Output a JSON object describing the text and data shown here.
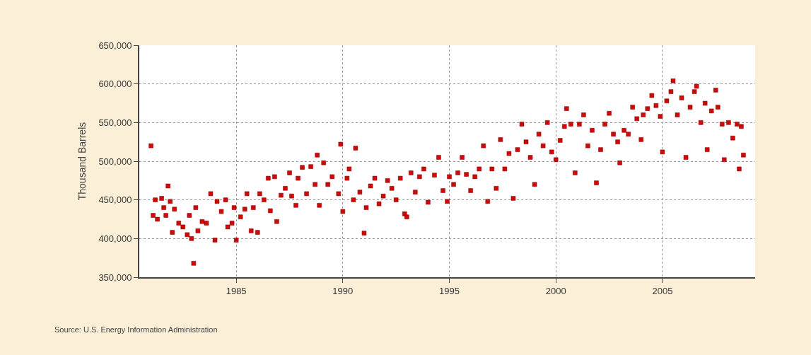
{
  "chart_data": {
    "type": "scatter",
    "ylabel": "Thousand Barrels",
    "marker": "square",
    "grid": true,
    "annotations": [
      "Source: U.S. Energy Information Administration"
    ],
    "xlim": [
      1980.45,
      2009.35
    ],
    "xticks": [
      1985,
      1990,
      1995,
      2000,
      2005
    ],
    "ylim": [
      350000,
      650000
    ],
    "yticks": [
      {
        "value": 350000,
        "label": "350,000"
      },
      {
        "value": 400000,
        "label": "400,000"
      },
      {
        "value": 450000,
        "label": "450,000"
      },
      {
        "value": 500000,
        "label": "500,000"
      },
      {
        "value": 550000,
        "label": "550,000"
      },
      {
        "value": 600000,
        "label": "600,000"
      },
      {
        "value": 650000,
        "label": "650,000"
      }
    ],
    "series": [
      {
        "color": "#cc0a0a",
        "x": [
          1981.0,
          1981.1,
          1981.2,
          1981.3,
          1981.5,
          1981.6,
          1981.7,
          1981.8,
          1981.9,
          1982.0,
          1982.1,
          1982.3,
          1982.5,
          1982.7,
          1982.8,
          1982.9,
          1983.0,
          1983.1,
          1983.2,
          1983.4,
          1983.6,
          1983.8,
          1984.0,
          1984.1,
          1984.3,
          1984.5,
          1984.6,
          1984.8,
          1984.9,
          1985.0,
          1985.2,
          1985.4,
          1985.5,
          1985.7,
          1985.8,
          1986.0,
          1986.1,
          1986.3,
          1986.5,
          1986.6,
          1986.8,
          1986.9,
          1987.1,
          1987.3,
          1987.5,
          1987.6,
          1987.8,
          1987.9,
          1988.1,
          1988.3,
          1988.5,
          1988.7,
          1988.8,
          1988.9,
          1989.1,
          1989.3,
          1989.5,
          1989.8,
          1989.9,
          1990.0,
          1990.2,
          1990.3,
          1990.5,
          1990.6,
          1990.8,
          1991.0,
          1991.1,
          1991.3,
          1991.5,
          1991.7,
          1991.9,
          1992.1,
          1992.3,
          1992.5,
          1992.7,
          1992.9,
          1993.0,
          1993.2,
          1993.4,
          1993.6,
          1993.8,
          1994.0,
          1994.3,
          1994.5,
          1994.7,
          1994.9,
          1995.0,
          1995.2,
          1995.4,
          1995.6,
          1995.8,
          1996.0,
          1996.2,
          1996.4,
          1996.6,
          1996.8,
          1997.0,
          1997.2,
          1997.4,
          1997.6,
          1997.8,
          1998.0,
          1998.2,
          1998.4,
          1998.6,
          1998.8,
          1999.0,
          1999.2,
          1999.4,
          1999.6,
          1999.8,
          2000.0,
          2000.2,
          2000.4,
          2000.5,
          2000.7,
          2000.9,
          2001.1,
          2001.3,
          2001.5,
          2001.7,
          2001.9,
          2002.1,
          2002.3,
          2002.5,
          2002.7,
          2002.9,
          2003.0,
          2003.2,
          2003.4,
          2003.6,
          2003.8,
          2004.0,
          2004.1,
          2004.3,
          2004.5,
          2004.7,
          2004.9,
          2005.0,
          2005.2,
          2005.4,
          2005.5,
          2005.7,
          2005.9,
          2006.1,
          2006.3,
          2006.5,
          2006.6,
          2006.8,
          2007.0,
          2007.1,
          2007.3,
          2007.5,
          2007.6,
          2007.8,
          2007.9,
          2008.1,
          2008.3,
          2008.5,
          2008.6,
          2008.7,
          2008.8
        ],
        "values": [
          520000,
          430000,
          450000,
          425000,
          452000,
          440000,
          430000,
          468000,
          448000,
          408000,
          438000,
          420000,
          415000,
          405000,
          430000,
          400000,
          368000,
          440000,
          410000,
          422000,
          420000,
          458000,
          398000,
          448000,
          435000,
          450000,
          415000,
          420000,
          440000,
          398000,
          428000,
          438000,
          458000,
          410000,
          440000,
          408000,
          458000,
          450000,
          478000,
          436000,
          480000,
          422000,
          456000,
          465000,
          485000,
          455000,
          443000,
          478000,
          492000,
          458000,
          493000,
          470000,
          508000,
          443000,
          498000,
          470000,
          480000,
          458000,
          522000,
          435000,
          478000,
          490000,
          450000,
          517000,
          460000,
          407000,
          440000,
          468000,
          478000,
          445000,
          455000,
          475000,
          465000,
          450000,
          478000,
          432000,
          428000,
          485000,
          460000,
          480000,
          490000,
          447000,
          482000,
          505000,
          462000,
          448000,
          480000,
          470000,
          485000,
          505000,
          483000,
          462000,
          480000,
          490000,
          520000,
          448000,
          490000,
          465000,
          528000,
          490000,
          510000,
          452000,
          515000,
          548000,
          525000,
          505000,
          470000,
          535000,
          520000,
          550000,
          512000,
          502000,
          527000,
          545000,
          568000,
          548000,
          485000,
          548000,
          560000,
          520000,
          540000,
          472000,
          515000,
          548000,
          562000,
          535000,
          525000,
          498000,
          540000,
          535000,
          570000,
          555000,
          528000,
          560000,
          568000,
          585000,
          572000,
          558000,
          512000,
          578000,
          590000,
          604000,
          560000,
          582000,
          505000,
          570000,
          590000,
          597000,
          550000,
          575000,
          515000,
          565000,
          592000,
          570000,
          548000,
          502000,
          550000,
          530000,
          548000,
          490000,
          545000,
          508000
        ]
      }
    ]
  }
}
